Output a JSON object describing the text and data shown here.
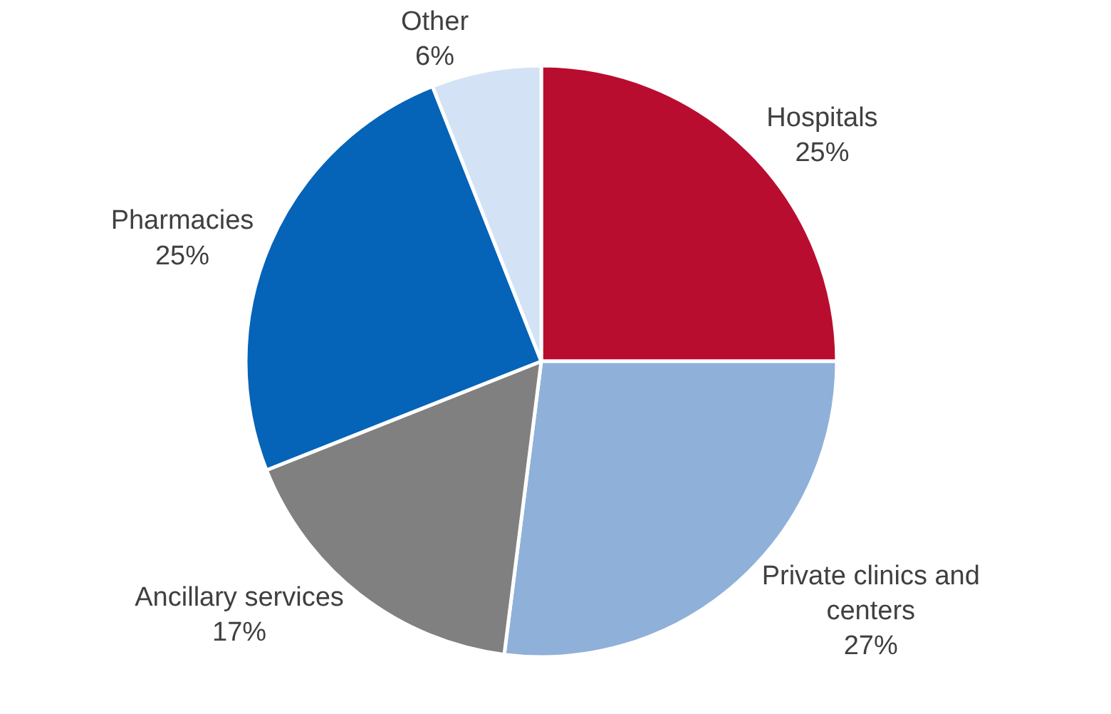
{
  "chart_data": {
    "type": "pie",
    "categories": [
      "Hospitals",
      "Private clinics and centers",
      "Ancillary services",
      "Pharmacies",
      "Other"
    ],
    "values": [
      25,
      27,
      17,
      25,
      6
    ],
    "value_labels": [
      "25%",
      "27%",
      "17%",
      "25%",
      "6%"
    ],
    "colors": [
      "#b90d2f",
      "#8fb0d9",
      "#808080",
      "#0563b8",
      "#d3e3f5"
    ],
    "legend": false
  }
}
